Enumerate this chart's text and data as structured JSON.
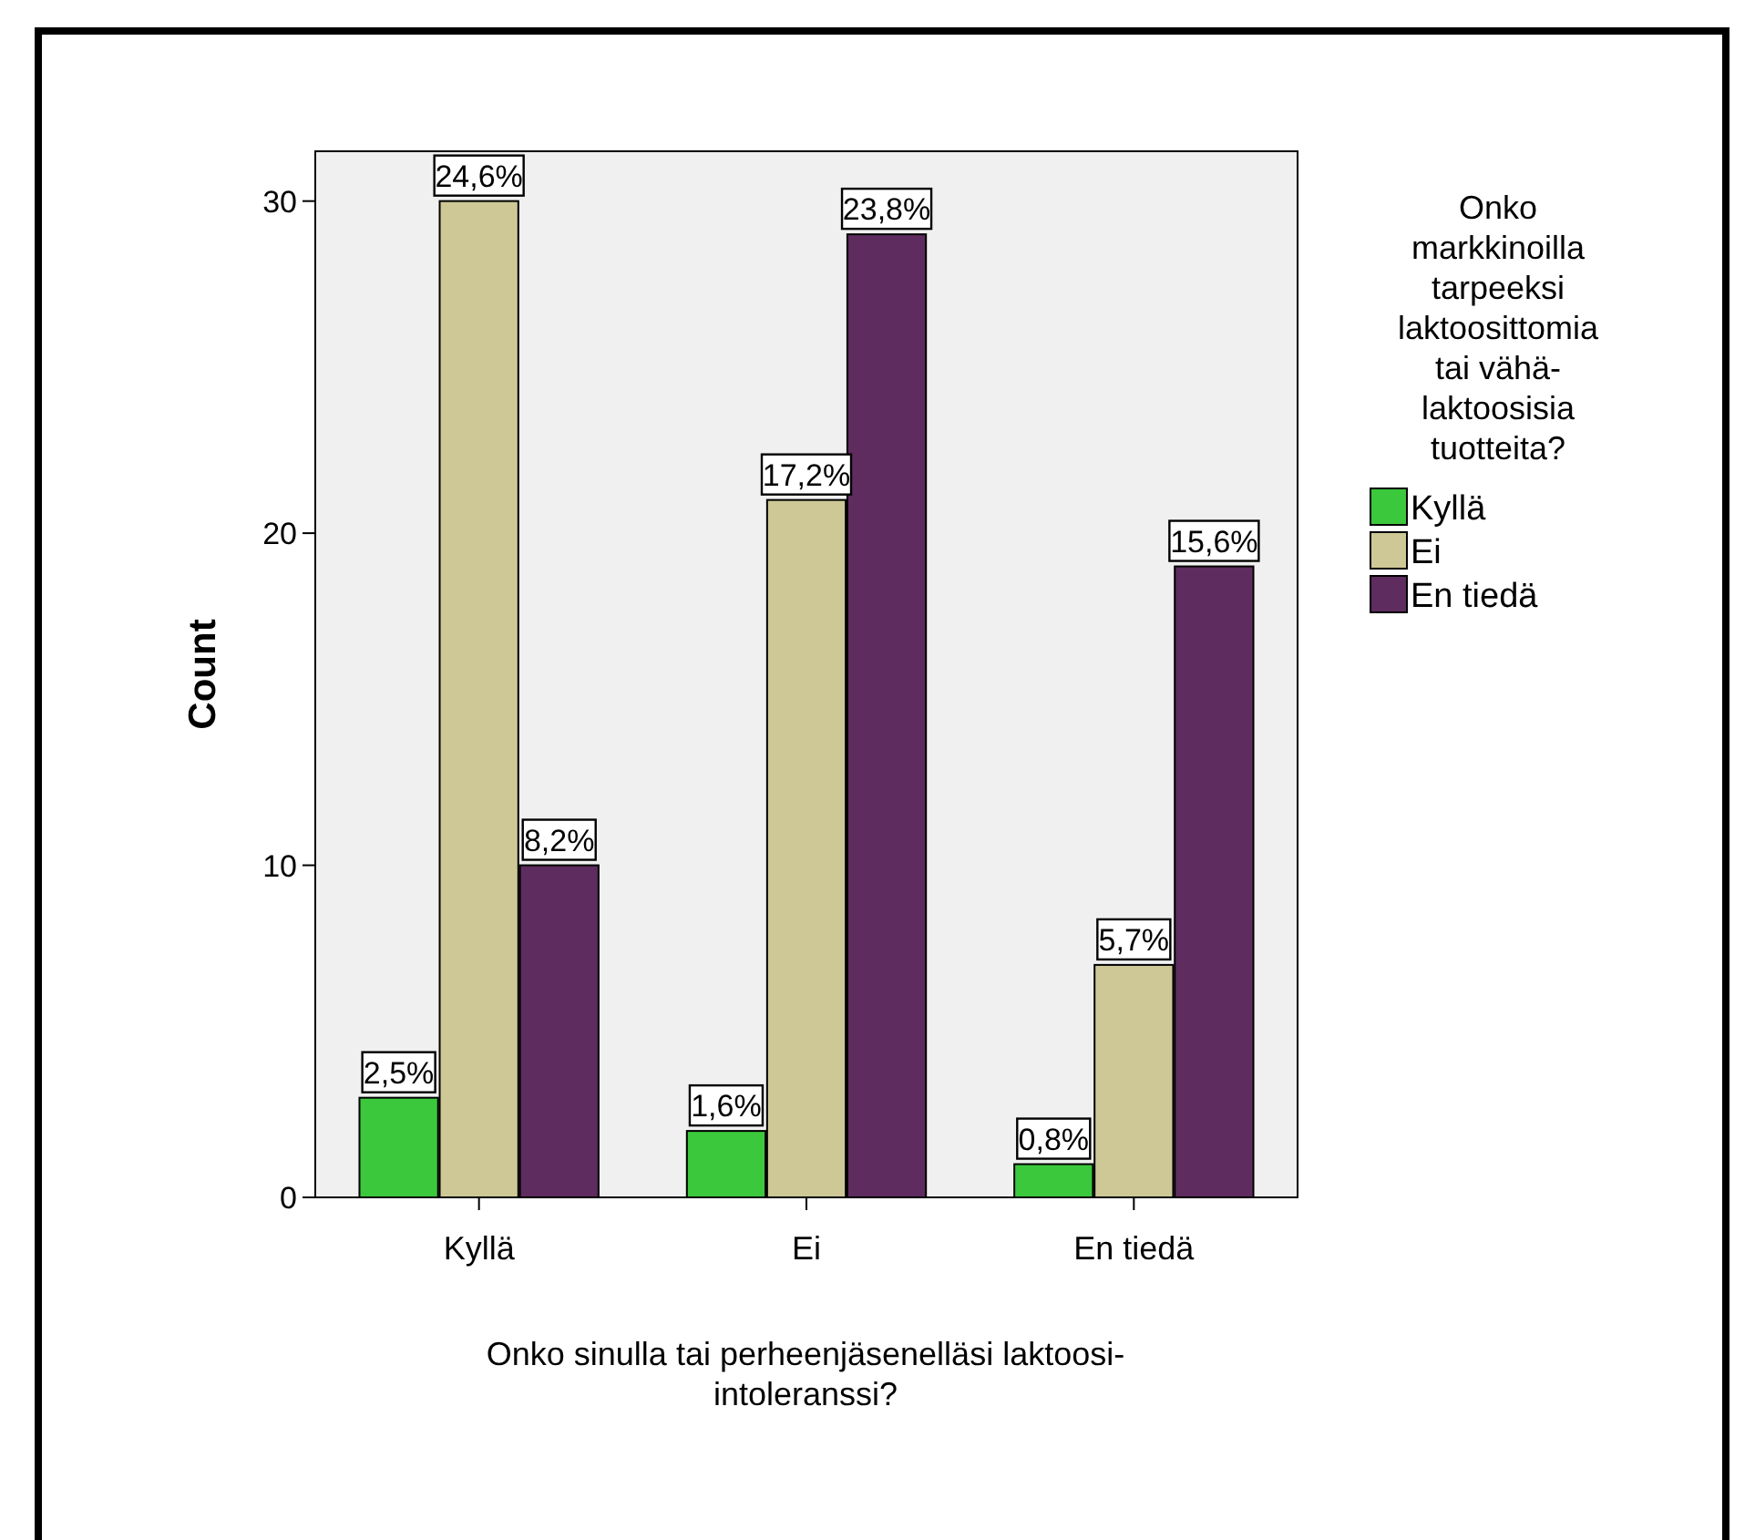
{
  "chart_data": {
    "type": "bar",
    "ylabel": "Count",
    "xlabel": "Onko sinulla tai perheenjäsenelläsi laktoosi-intoleranssi?",
    "legend_title": "Onko markkinoilla tarpeeksi laktoosittomia tai vähä-laktoosisia tuotteita?",
    "categories": [
      "Kyllä",
      "Ei",
      "En tiedä"
    ],
    "series": [
      {
        "name": "Kyllä",
        "color": "#3cc83c",
        "values": [
          3,
          2,
          1
        ]
      },
      {
        "name": "Ei",
        "color": "#cdc896",
        "values": [
          30,
          21,
          7
        ]
      },
      {
        "name": "En tiedä",
        "color": "#5e2c5e",
        "values": [
          10,
          29,
          19
        ]
      }
    ],
    "annotations": [
      "2,5%",
      "24,6%",
      "8,2%",
      "1,6%",
      "17,2%",
      "23,8%",
      "0,8%",
      "5,7%",
      "15,6%"
    ],
    "ylim": [
      0,
      31.5
    ],
    "yticks": [
      0,
      10,
      20,
      30
    ],
    "grid": false,
    "legend": "right"
  }
}
